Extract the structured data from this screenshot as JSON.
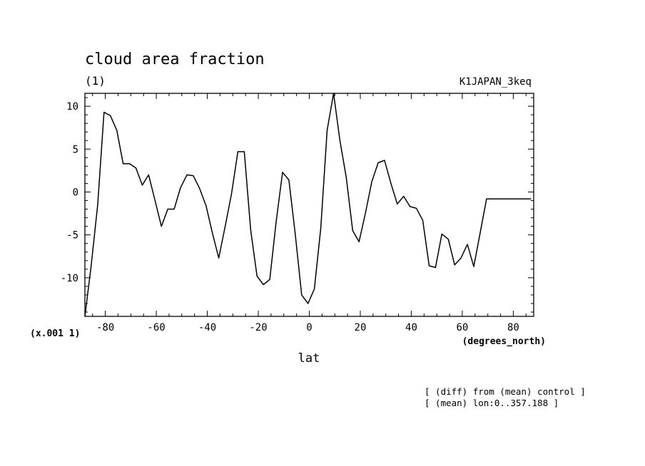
{
  "chart_data": {
    "type": "line",
    "title": "cloud area fraction",
    "units": "(1)",
    "run_label": "K1JAPAN_3keq",
    "xlabel": "lat",
    "x_units": "(degrees_north)",
    "y_scale_note": "(x.001 1)",
    "xlim": [
      -88,
      88
    ],
    "ylim": [
      -14.5,
      11.5
    ],
    "x_ticks": [
      -80,
      -60,
      -40,
      -20,
      0,
      20,
      40,
      60,
      80
    ],
    "x_tick_labels": [
      "-80",
      "-60",
      "-40",
      "-20",
      "0",
      "20",
      "40",
      "60",
      "80"
    ],
    "y_ticks": [
      -10,
      -5,
      0,
      5,
      10
    ],
    "y_tick_labels": [
      "-10",
      "-5",
      "0",
      "5",
      "10"
    ],
    "notes": [
      "[ (diff) from (mean) control ]",
      "[ (mean) lon:0..357.188 ]"
    ],
    "grid": false,
    "series": [
      {
        "color": "#000000",
        "x": [
          -88.0,
          -85.5,
          -83.0,
          -80.5,
          -78.0,
          -75.5,
          -73.0,
          -70.5,
          -68.0,
          -65.5,
          -63.0,
          -60.5,
          -58.0,
          -55.5,
          -53.0,
          -50.5,
          -48.0,
          -45.5,
          -43.0,
          -40.5,
          -38.0,
          -35.5,
          -33.0,
          -30.5,
          -28.0,
          -25.5,
          -23.0,
          -20.5,
          -18.0,
          -15.5,
          -13.0,
          -10.5,
          -8.0,
          -5.5,
          -3.0,
          -0.5,
          2.0,
          4.5,
          7.0,
          9.5,
          12.0,
          14.5,
          17.0,
          19.5,
          22.0,
          24.5,
          27.0,
          29.5,
          32.0,
          34.5,
          37.0,
          39.5,
          42.0,
          44.5,
          47.0,
          49.5,
          52.0,
          54.5,
          57.0,
          59.5,
          62.0,
          64.5,
          67.0,
          69.5,
          72.0,
          74.5,
          77.0,
          79.5,
          82.0,
          84.5,
          87.0
        ],
        "values": [
          -14.5,
          -8.5,
          -1.5,
          9.3,
          8.9,
          7.2,
          3.3,
          3.3,
          2.8,
          0.8,
          2.0,
          -1.0,
          -4.0,
          -2.0,
          -2.0,
          0.5,
          2.0,
          1.9,
          0.4,
          -1.6,
          -4.8,
          -7.7,
          -4.0,
          -0.2,
          4.7,
          4.7,
          -4.4,
          -9.8,
          -10.8,
          -10.2,
          -3.5,
          2.3,
          1.4,
          -4.9,
          -12.0,
          -13.0,
          -11.3,
          -4.2,
          7.2,
          11.5,
          6.0,
          1.7,
          -4.5,
          -5.8,
          -2.5,
          1.2,
          3.4,
          3.7,
          1.0,
          -1.4,
          -0.5,
          -1.7,
          -1.9,
          -3.3,
          -8.6,
          -8.8,
          -4.9,
          -5.5,
          -8.5,
          -7.7,
          -6.1,
          -8.7,
          -4.8,
          -0.8,
          -0.8,
          -0.8,
          -0.8,
          -0.8,
          -0.8,
          -0.8,
          -0.8
        ]
      }
    ]
  }
}
